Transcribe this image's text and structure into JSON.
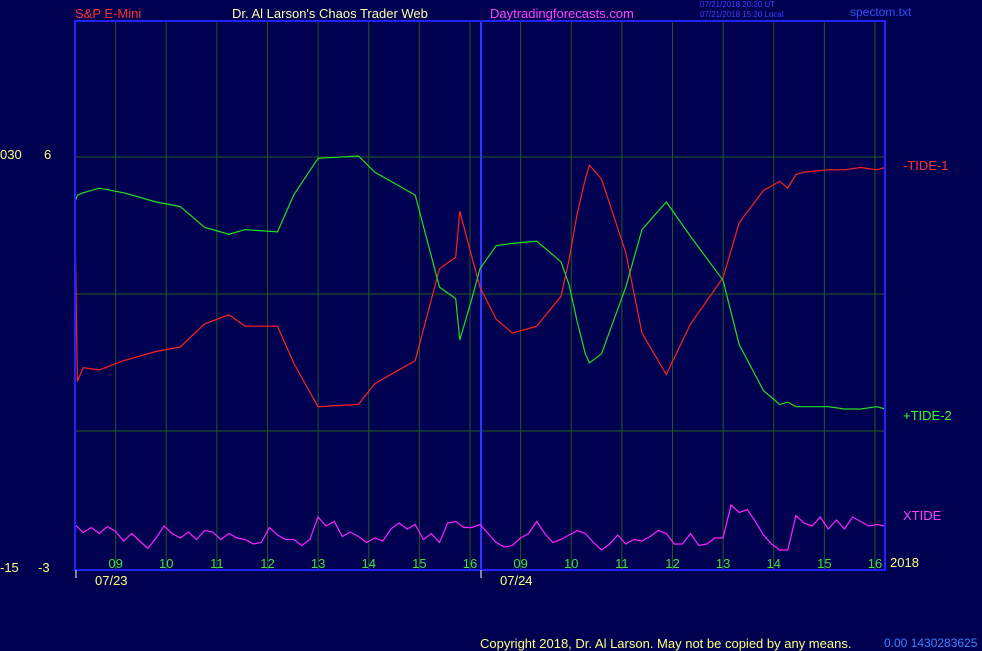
{
  "header": {
    "symbol": "S&P E-Mini",
    "title": "Dr. Al Larson's Chaos Trader Web",
    "site": "Daytradingforecasts.com",
    "timestamp_ut": "07/21/2018 20:20 UT",
    "timestamp_local": "07/21/2018 15:20 Local",
    "file": "spectom.txt"
  },
  "footer": {
    "copyright": "Copyright 2018, Dr. Al Larson. May not be copied by any means.",
    "code": "0.00 1430283625"
  },
  "year_label": "2018",
  "colors": {
    "background": "#000050",
    "frame": "#2222ff",
    "grid": "#1f5a1f",
    "tide1": "#ff2020",
    "tide2": "#20e020",
    "xtide": "#ff20ff",
    "axis_text": "#ffff80"
  },
  "chart_data": {
    "type": "line",
    "left_axis": {
      "outer_labels": [
        "030",
        "-15"
      ],
      "inner_labels": [
        "6",
        "-3"
      ]
    },
    "x_hour_ticks": [
      "09",
      "10",
      "11",
      "12",
      "13",
      "14",
      "15",
      "16",
      "09",
      "10",
      "11",
      "12",
      "13",
      "14",
      "15",
      "16"
    ],
    "dates": [
      "07/23",
      "07/24"
    ],
    "series": [
      {
        "name": "-TIDE-1",
        "color": "#ff2020",
        "x": [
          0,
          0.3,
          1,
          3,
          6,
          10,
          13,
          16,
          19,
          21,
          25,
          27,
          30,
          35,
          37,
          42,
          45,
          47,
          47.5,
          49,
          50,
          52,
          54,
          57,
          60,
          61,
          62,
          63,
          63.5,
          65,
          68,
          70,
          73,
          76,
          80,
          82,
          85,
          87,
          88,
          89,
          90,
          93,
          95,
          97,
          99,
          100
        ],
        "y": [
          3.2,
          -3.8,
          -3.2,
          -3.3,
          -2.9,
          -2.5,
          -2.3,
          -1.3,
          -0.9,
          -1.4,
          -1.4,
          -3.0,
          -4.9,
          -4.8,
          -3.9,
          -2.9,
          1.1,
          1.6,
          3.6,
          1.6,
          0.3,
          -1.1,
          -1.7,
          -1.4,
          -0.1,
          1.5,
          3.5,
          5.0,
          5.6,
          5.0,
          1.8,
          -1.7,
          -3.5,
          -1.3,
          0.7,
          3.1,
          4.5,
          4.9,
          4.6,
          5.2,
          5.3,
          5.4,
          5.4,
          5.5,
          5.4,
          5.5
        ]
      },
      {
        "name": "+TIDE-2",
        "color": "#20e020",
        "x": [
          0,
          0.3,
          1,
          3,
          6,
          10,
          13,
          16,
          19,
          21,
          25,
          27,
          30,
          35,
          37,
          42,
          45,
          47,
          47.5,
          49,
          50,
          52,
          54,
          57,
          60,
          61,
          62,
          63,
          63.5,
          65,
          68,
          70,
          73,
          76,
          80,
          82,
          85,
          87,
          88,
          89,
          90,
          93,
          95,
          97,
          99,
          100
        ],
        "y": [
          4.0,
          4.3,
          4.4,
          4.6,
          4.4,
          4.0,
          3.8,
          2.9,
          2.6,
          2.8,
          2.7,
          4.3,
          5.9,
          6.0,
          5.3,
          4.3,
          0.3,
          -0.2,
          -2.0,
          -0.2,
          1.1,
          2.1,
          2.2,
          2.3,
          1.4,
          0.4,
          -1.2,
          -2.6,
          -3.0,
          -2.6,
          0.3,
          2.8,
          4.0,
          2.5,
          0.6,
          -2.2,
          -4.2,
          -4.8,
          -4.7,
          -4.9,
          -4.9,
          -4.9,
          -5.0,
          -5.0,
          -4.9,
          -5.0
        ]
      },
      {
        "name": "XTIDE",
        "color": "#ff20ff",
        "x": [
          0,
          1,
          2,
          3,
          4,
          5,
          6,
          7,
          8,
          9,
          10,
          11,
          12,
          13,
          14,
          15,
          16,
          17,
          18,
          19,
          20,
          21,
          22,
          23,
          24,
          25,
          26,
          27,
          28,
          29,
          30,
          31,
          32,
          33,
          34,
          35,
          36,
          37,
          38,
          39,
          40,
          41,
          42,
          43,
          44,
          45,
          46,
          47,
          48,
          49,
          50,
          51,
          52,
          53,
          54,
          55,
          56,
          57,
          58,
          59,
          60,
          61,
          62,
          63,
          64,
          65,
          66,
          67,
          68,
          69,
          70,
          71,
          72,
          73,
          74,
          75,
          76,
          77,
          78,
          79,
          80,
          81,
          82,
          83,
          84,
          85,
          86,
          87,
          88,
          89,
          90,
          91,
          92,
          93,
          94,
          95,
          96,
          97,
          98,
          99,
          100
        ],
        "y": [
          3.5,
          0.8,
          2.5,
          0.5,
          2.8,
          1.2,
          -2.0,
          0.5,
          -2.0,
          -4.5,
          -1.0,
          3.0,
          0.5,
          -1.0,
          1.0,
          -1.5,
          1.5,
          1.0,
          -1.5,
          0.5,
          -1.0,
          -1.5,
          -3.0,
          -2.5,
          2.5,
          0.0,
          -1.5,
          -1.5,
          -3.5,
          -1.5,
          6.0,
          3.0,
          4.5,
          -0.5,
          1.0,
          -0.5,
          -2.5,
          -1.0,
          -2.0,
          2.0,
          4.0,
          2.0,
          3.5,
          -1.5,
          0.5,
          -2.5,
          4.0,
          4.5,
          2.5,
          2.5,
          3.5,
          0.5,
          -2.5,
          -4.0,
          -3.5,
          -1.0,
          0.5,
          4.5,
          0.5,
          -2.5,
          -1.5,
          0.0,
          1.5,
          0.5,
          -2.5,
          -5.0,
          -3.0,
          0.0,
          -3.0,
          -1.5,
          -2.0,
          -0.5,
          1.5,
          0.5,
          -3.0,
          -3.0,
          0.5,
          -3.5,
          -3.0,
          -1.0,
          -1.0,
          10.0,
          7.5,
          8.5,
          4.5,
          0.0,
          -3.0,
          -5.0,
          -5.0,
          6.5,
          4.0,
          3.0,
          6.0,
          2.0,
          5.0,
          2.0,
          6.0,
          4.5,
          3.0,
          3.5,
          3.0
        ]
      }
    ]
  }
}
